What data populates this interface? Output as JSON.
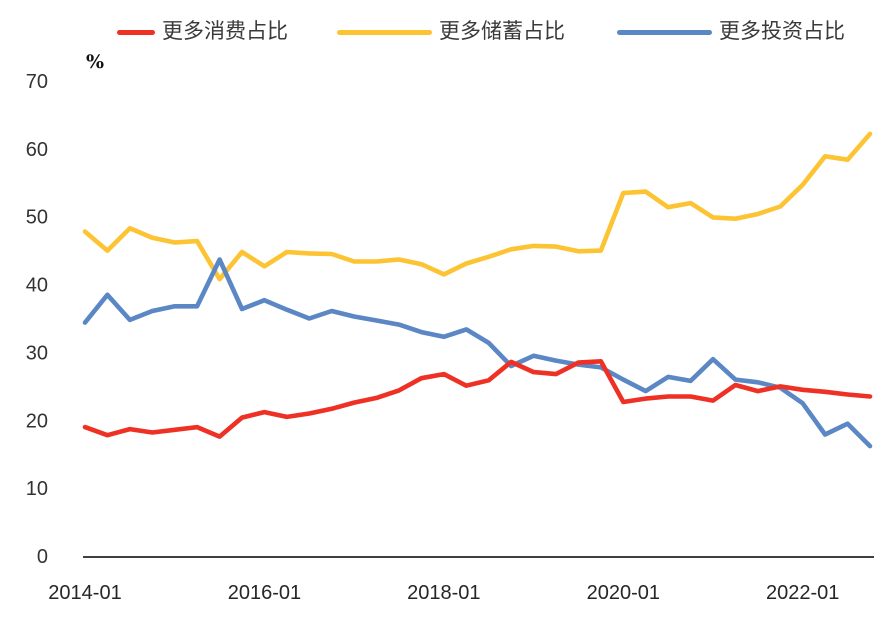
{
  "figure": {
    "background": "#ffffff",
    "axis_color": "#404040"
  },
  "chart_data": {
    "type": "line",
    "title": "",
    "xlabel": "",
    "ylabel": "",
    "unit_label": "%",
    "ylim": [
      0,
      70
    ],
    "y_ticks": [
      0,
      10,
      20,
      30,
      40,
      50,
      60,
      70
    ],
    "grid": false,
    "legend_position": "top",
    "x_tick_labels": [
      "2014-01",
      "2016-01",
      "2018-01",
      "2020-01",
      "2022-01"
    ],
    "x_tick_indices": [
      0,
      8,
      16,
      24,
      32
    ],
    "categories": [
      "2014-01",
      "2014-04",
      "2014-07",
      "2014-10",
      "2015-01",
      "2015-04",
      "2015-07",
      "2015-10",
      "2016-01",
      "2016-04",
      "2016-07",
      "2016-10",
      "2017-01",
      "2017-04",
      "2017-07",
      "2017-10",
      "2018-01",
      "2018-04",
      "2018-07",
      "2018-10",
      "2019-01",
      "2019-04",
      "2019-07",
      "2019-10",
      "2020-01",
      "2020-04",
      "2020-07",
      "2020-10",
      "2021-01",
      "2021-04",
      "2021-07",
      "2021-10",
      "2022-01",
      "2022-04",
      "2022-07",
      "2022-10"
    ],
    "series": [
      {
        "name": "更多消费占比",
        "color": "#ee3124",
        "values": [
          19.0,
          17.8,
          18.7,
          18.2,
          18.6,
          19.0,
          17.6,
          20.4,
          21.2,
          20.5,
          21.0,
          21.7,
          22.6,
          23.3,
          24.4,
          26.2,
          26.8,
          25.1,
          25.9,
          28.6,
          27.1,
          26.8,
          28.5,
          28.7,
          22.7,
          23.2,
          23.5,
          23.5,
          22.9,
          25.2,
          24.3,
          25.0,
          24.5,
          24.2,
          23.8,
          23.5
        ]
      },
      {
        "name": "更多储蓄占比",
        "color": "#fcc433",
        "values": [
          47.8,
          45.0,
          48.3,
          46.9,
          46.2,
          46.4,
          40.8,
          44.8,
          42.7,
          44.8,
          44.6,
          44.5,
          43.4,
          43.4,
          43.7,
          43.0,
          41.5,
          43.1,
          44.1,
          45.2,
          45.7,
          45.6,
          44.9,
          45.0,
          53.5,
          53.7,
          51.4,
          52.0,
          49.9,
          49.7,
          50.4,
          51.5,
          54.7,
          58.9,
          58.4,
          62.2
        ]
      },
      {
        "name": "更多投资占比",
        "color": "#5b87c5",
        "values": [
          34.4,
          38.5,
          34.8,
          36.1,
          36.8,
          36.8,
          43.7,
          36.4,
          37.7,
          36.3,
          35.0,
          36.1,
          35.3,
          34.7,
          34.1,
          33.0,
          32.3,
          33.4,
          31.4,
          28.0,
          29.5,
          28.8,
          28.2,
          27.8,
          26.0,
          24.3,
          26.4,
          25.8,
          29.0,
          26.0,
          25.6,
          24.8,
          22.5,
          17.9,
          19.5,
          16.2
        ]
      }
    ],
    "draw_order": [
      1,
      2,
      0
    ],
    "line_width": 4.6
  }
}
